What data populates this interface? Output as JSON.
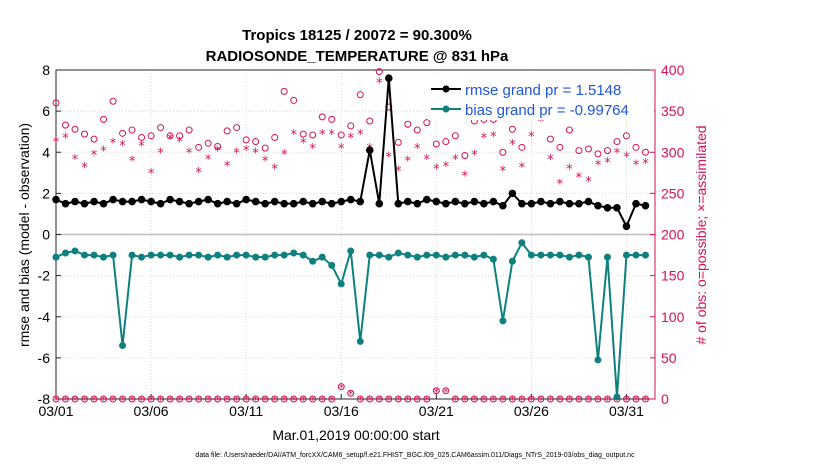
{
  "colors": {
    "rmse": "#000000",
    "bias": "#0e8080",
    "obs": "#d6105a",
    "grid": "#d9d9d9",
    "zero": "#bdbdbd"
  },
  "chart_data": {
    "type": "line",
    "title": "Tropics 18125 / 20072 = 90.300%",
    "subtitle": "RADIOSONDE_TEMPERATURE @ 831 hPa",
    "xlabel": "Mar.01,2019 00:00:00 start",
    "ylabel": "rmse and bias (model - observation)",
    "ylabel_right": "# of obs: o=possible; ×=assimilated",
    "footnote": "data file: /Users/raeder/DAI/ATM_forcXX/CAM6_setup/f.e21.FHIST_BGC.f09_025.CAM6assim.011/Diags_NTrS_2019-03/obs_diag_output.nc",
    "xlim": [
      0,
      31.5
    ],
    "ylim": [
      -8,
      8
    ],
    "ylim_right": [
      0,
      400
    ],
    "xticks": [
      0,
      5,
      10,
      15,
      20,
      25,
      30
    ],
    "xtick_labels": [
      "03/01",
      "03/06",
      "03/11",
      "03/16",
      "03/21",
      "03/26",
      "03/31"
    ],
    "yticks": [
      -8,
      -6,
      -4,
      -2,
      0,
      2,
      4,
      6,
      8
    ],
    "yticks_right": [
      0,
      50,
      100,
      150,
      200,
      250,
      300,
      350,
      400
    ],
    "legend": [
      "rmse grand pr = 1.5148",
      "bias grand pr = -0.99764"
    ],
    "series": [
      {
        "name": "rmse",
        "x": [
          0.0,
          0.5,
          1.0,
          1.5,
          2.0,
          2.5,
          3.0,
          3.5,
          4.0,
          4.5,
          5.0,
          5.5,
          6.0,
          6.5,
          7.0,
          7.5,
          8.0,
          8.5,
          9.0,
          9.5,
          10.0,
          10.5,
          11.0,
          11.5,
          12.0,
          12.5,
          13.0,
          13.5,
          14.0,
          14.5,
          15.0,
          15.5,
          16.0,
          16.5,
          17.0,
          17.5,
          18.0,
          18.5,
          19.0,
          19.5,
          20.0,
          20.5,
          21.0,
          21.5,
          22.0,
          22.5,
          23.0,
          23.5,
          24.0,
          24.5,
          25.0,
          25.5,
          26.0,
          26.5,
          27.0,
          27.5,
          28.0,
          28.5,
          29.0,
          29.5,
          30.0,
          30.5,
          31.0
        ],
        "values": [
          1.7,
          1.5,
          1.6,
          1.5,
          1.6,
          1.5,
          1.7,
          1.6,
          1.6,
          1.7,
          1.6,
          1.5,
          1.7,
          1.6,
          1.5,
          1.6,
          1.7,
          1.5,
          1.6,
          1.5,
          1.7,
          1.6,
          1.5,
          1.6,
          1.5,
          1.5,
          1.6,
          1.5,
          1.6,
          1.5,
          1.6,
          1.7,
          1.6,
          4.1,
          1.5,
          7.6,
          1.5,
          1.6,
          1.5,
          1.7,
          1.6,
          1.5,
          1.6,
          1.5,
          1.6,
          1.5,
          1.6,
          1.4,
          2.0,
          1.5,
          1.5,
          1.6,
          1.5,
          1.6,
          1.5,
          1.5,
          1.6,
          1.4,
          1.3,
          1.3,
          0.4,
          1.5,
          1.4
        ]
      },
      {
        "name": "bias",
        "x": [
          0.0,
          0.5,
          1.0,
          1.5,
          2.0,
          2.5,
          3.0,
          3.5,
          4.0,
          4.5,
          5.0,
          5.5,
          6.0,
          6.5,
          7.0,
          7.5,
          8.0,
          8.5,
          9.0,
          9.5,
          10.0,
          10.5,
          11.0,
          11.5,
          12.0,
          12.5,
          13.0,
          13.5,
          14.0,
          14.5,
          15.0,
          15.5,
          16.0,
          16.5,
          17.0,
          17.5,
          18.0,
          18.5,
          19.0,
          19.5,
          20.0,
          20.5,
          21.0,
          21.5,
          22.0,
          22.5,
          23.0,
          23.5,
          24.0,
          24.5,
          25.0,
          25.5,
          26.0,
          26.5,
          27.0,
          27.5,
          28.0,
          28.5,
          29.0,
          29.5,
          30.0,
          30.5,
          31.0
        ],
        "values": [
          -1.1,
          -0.9,
          -0.8,
          -1.0,
          -1.0,
          -1.1,
          -1.0,
          -5.4,
          -1.0,
          -1.1,
          -1.0,
          -1.0,
          -1.0,
          -1.1,
          -1.0,
          -1.0,
          -1.1,
          -1.0,
          -1.1,
          -1.0,
          -1.0,
          -1.1,
          -1.1,
          -1.0,
          -1.0,
          -0.9,
          -1.0,
          -1.3,
          -1.1,
          -1.5,
          -2.4,
          -0.8,
          -5.2,
          -1.0,
          -1.0,
          -1.1,
          -0.9,
          -1.0,
          -1.1,
          -1.0,
          -1.0,
          -1.1,
          -1.0,
          -1.0,
          -1.1,
          -1.0,
          -1.2,
          -4.2,
          -1.3,
          -0.4,
          -1.0,
          -1.0,
          -1.0,
          -1.0,
          -1.1,
          -1.0,
          -1.1,
          -6.1,
          -1.1,
          -7.9,
          -1.0,
          -1.0,
          -1.0
        ]
      },
      {
        "name": "obs possible",
        "axis": "right",
        "x": [
          0.0,
          0.5,
          1.0,
          1.5,
          2.0,
          2.5,
          3.0,
          3.5,
          4.0,
          4.5,
          5.0,
          5.5,
          6.0,
          6.5,
          7.0,
          7.5,
          8.0,
          8.5,
          9.0,
          9.5,
          10.0,
          10.5,
          11.0,
          11.5,
          12.0,
          12.5,
          13.0,
          13.5,
          14.0,
          14.5,
          15.0,
          15.5,
          16.0,
          16.5,
          17.0,
          17.5,
          18.0,
          18.5,
          19.0,
          19.5,
          20.0,
          20.5,
          21.0,
          21.5,
          22.0,
          22.5,
          23.0,
          23.5,
          24.0,
          24.5,
          25.0,
          25.5,
          26.0,
          26.5,
          27.0,
          27.5,
          28.0,
          28.5,
          29.0,
          29.5,
          30.0,
          30.5,
          31.0
        ],
        "values": [
          360,
          333,
          328,
          322,
          316,
          340,
          362,
          323,
          327,
          318,
          320,
          330,
          320,
          320,
          327,
          306,
          311,
          307,
          326,
          330,
          315,
          313,
          305,
          318,
          374,
          363,
          322,
          321,
          343,
          340,
          321,
          332,
          370,
          338,
          398,
          355,
          312,
          334,
          327,
          336,
          310,
          313,
          320,
          296,
          338,
          340,
          340,
          300,
          328,
          306,
          378,
          352,
          316,
          306,
          327,
          302,
          304,
          298,
          302,
          313,
          320,
          306,
          300
        ]
      },
      {
        "name": "obs assimilated",
        "axis": "right",
        "x": [
          0.0,
          0.5,
          1.0,
          1.5,
          2.0,
          2.5,
          3.0,
          3.5,
          4.0,
          4.5,
          5.0,
          5.5,
          6.0,
          6.5,
          7.0,
          7.5,
          8.0,
          8.5,
          9.0,
          9.5,
          10.0,
          10.5,
          11.0,
          11.5,
          12.0,
          12.5,
          13.0,
          13.5,
          14.0,
          14.5,
          15.0,
          15.5,
          16.0,
          16.5,
          17.0,
          17.5,
          18.0,
          18.5,
          19.0,
          19.5,
          20.0,
          20.5,
          21.0,
          21.5,
          22.0,
          22.5,
          23.0,
          23.5,
          24.0,
          24.5,
          25.0,
          25.5,
          26.0,
          26.5,
          27.0,
          27.5,
          28.0,
          28.5,
          29.0,
          29.5,
          30.0,
          30.5,
          31.0
        ],
        "values": [
          313,
          318,
          292,
          282,
          297,
          302,
          312,
          309,
          290,
          308,
          275,
          300,
          317,
          313,
          300,
          276,
          292,
          302,
          284,
          300,
          303,
          300,
          290,
          280,
          298,
          322,
          312,
          305,
          322,
          322,
          305,
          318,
          322,
          305,
          385,
          295,
          278,
          290,
          305,
          292,
          280,
          283,
          292,
          272,
          297,
          318,
          320,
          278,
          310,
          282,
          320,
          338,
          292,
          262,
          280,
          270,
          265,
          285,
          288,
          300,
          295,
          285,
          287
        ]
      },
      {
        "name": "obs possible (bottom row)",
        "axis": "right",
        "x": [
          0.0,
          0.5,
          1.0,
          1.5,
          2.0,
          2.5,
          3.0,
          3.5,
          4.0,
          4.5,
          5.0,
          5.5,
          6.0,
          6.5,
          7.0,
          7.5,
          8.0,
          8.5,
          9.0,
          9.5,
          10.0,
          10.5,
          11.0,
          11.5,
          12.0,
          12.5,
          13.0,
          13.5,
          14.0,
          14.5,
          15.0,
          15.5,
          16.0,
          16.5,
          17.0,
          17.5,
          18.0,
          18.5,
          19.0,
          19.5,
          20.0,
          20.5,
          21.0,
          21.5,
          22.0,
          22.5,
          23.0,
          23.5,
          24.0,
          24.5,
          25.0,
          25.5,
          26.0,
          26.5,
          27.0,
          27.5,
          28.0,
          28.5,
          29.0,
          29.5,
          30.0,
          30.5,
          31.0
        ],
        "values": [
          0,
          0,
          0,
          0,
          0,
          0,
          0,
          0,
          0,
          0,
          0,
          0,
          0,
          0,
          0,
          0,
          0,
          0,
          0,
          0,
          0,
          0,
          0,
          0,
          0,
          0,
          0,
          0,
          0,
          0,
          15,
          7,
          0,
          0,
          0,
          0,
          0,
          0,
          0,
          0,
          10,
          10,
          0,
          0,
          0,
          0,
          0,
          0,
          0,
          0,
          0,
          0,
          0,
          0,
          0,
          0,
          0,
          0,
          0,
          0,
          0,
          0,
          0
        ]
      }
    ]
  }
}
